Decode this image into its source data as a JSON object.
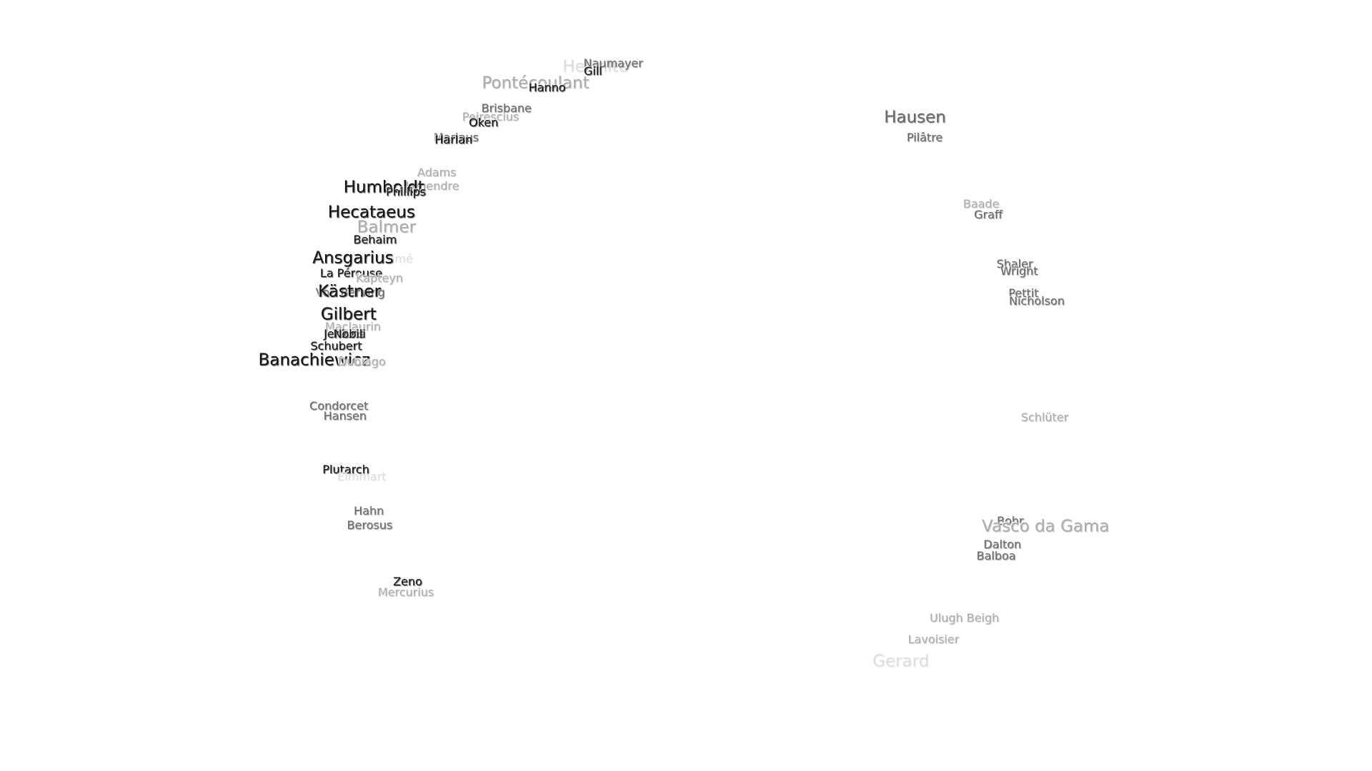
{
  "labels": [
    "Hermite",
    "Naumayer",
    "Gill",
    "Pontécoulant",
    "Hanno",
    "Brisbane",
    "Peirescius",
    "Oken",
    "Marinus",
    "Harlan",
    "Adams",
    "Legendre",
    "Humboldt",
    "Phillips",
    "Hecataeus",
    "Balmer",
    "Behaim",
    "Lamé",
    "Ansgarius",
    "La Pérouse",
    "Kapteyn",
    "Von Behring",
    "Kästner",
    "Gilbert",
    "Maclaurin",
    "Jenkins",
    "Nobili",
    "Schubert",
    "Banachiewicz",
    "Dubiago",
    "Condorcet",
    "Hansen",
    "Plutarch",
    "Eimmart",
    "Hahn",
    "Berosus",
    "Zeno",
    "Mercurius",
    "Hausen",
    "Pilâtre",
    "Baade",
    "Graff",
    "Shaler",
    "Wright",
    "Pettit",
    "Nicholson",
    "Schlüter",
    "Bohr",
    "Vasco da Gama",
    "Dalton",
    "Balboa",
    "Ulugh Beigh",
    "Lavoisier",
    "Gerard"
  ]
}
